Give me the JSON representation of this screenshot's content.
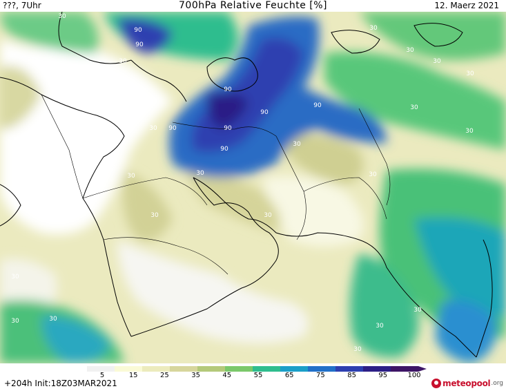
{
  "header": {
    "left": "???, 7Uhr",
    "title": "700hPa Relative Feuchte [%]",
    "date": "12. Maerz 2021"
  },
  "footer": {
    "run": "+204h  Init:18Z03MAR2021",
    "brand": "meteopool",
    "brand_tld": ".org"
  },
  "colorbar": {
    "unit": "%",
    "tick_labels": [
      "5",
      "15",
      "25",
      "35",
      "45",
      "55",
      "65",
      "75",
      "85",
      "95",
      "100"
    ],
    "colors": [
      "#f1f1f1",
      "#fafad6",
      "#ecebbd",
      "#d7d69c",
      "#b4c97a",
      "#7bc86a",
      "#2fbd8e",
      "#1b9fc8",
      "#2170c8",
      "#2d3fb0",
      "#2c1f86",
      "#3d1566"
    ]
  },
  "map": {
    "region": "Middle East / Arabian Peninsula / South Asia",
    "contour_labels": [
      {
        "value": "90"
      },
      {
        "value": "90"
      },
      {
        "value": "90"
      },
      {
        "value": "90"
      },
      {
        "value": "90"
      },
      {
        "value": "90"
      },
      {
        "value": "90"
      },
      {
        "value": "90"
      },
      {
        "value": "90"
      },
      {
        "value": "90"
      },
      {
        "value": "30"
      },
      {
        "value": "30"
      },
      {
        "value": "30"
      },
      {
        "value": "30"
      },
      {
        "value": "30"
      },
      {
        "value": "30"
      },
      {
        "value": "30"
      },
      {
        "value": "30"
      },
      {
        "value": "30"
      },
      {
        "value": "30"
      },
      {
        "value": "30"
      },
      {
        "value": "30"
      },
      {
        "value": "30"
      },
      {
        "value": "30"
      },
      {
        "value": "30"
      },
      {
        "value": "30"
      },
      {
        "value": "30"
      },
      {
        "value": "30"
      },
      {
        "value": "30"
      },
      {
        "value": "30"
      },
      {
        "value": "30"
      },
      {
        "value": "30"
      }
    ]
  }
}
